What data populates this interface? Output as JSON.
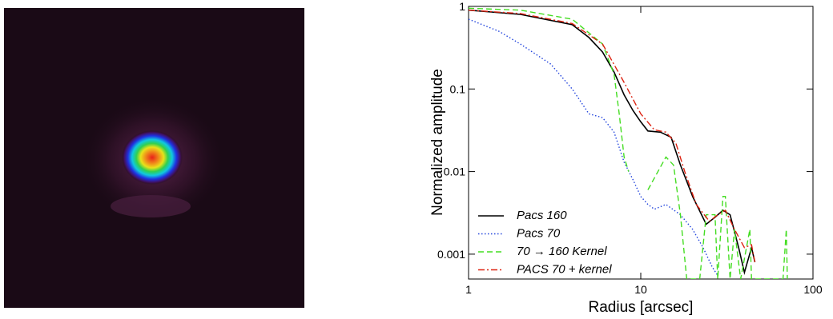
{
  "chart_data": {
    "type": "line",
    "xlabel": "Radius [arcsec]",
    "ylabel": "Normalized amplitude",
    "xlog": true,
    "ylog": true,
    "xlim": [
      1,
      100
    ],
    "ylim": [
      0.0005,
      1
    ],
    "xticks": [
      1,
      10,
      100
    ],
    "yticks": [
      0.001,
      0.01,
      0.1,
      1
    ],
    "legend": "lower left",
    "series": [
      {
        "name": "Pacs 160",
        "color": "#000000",
        "style": "solid",
        "x": [
          1,
          2,
          4,
          5,
          6,
          7,
          8,
          9,
          10,
          11,
          13,
          15,
          17,
          20,
          24,
          27,
          30,
          33,
          37,
          40,
          44,
          46
        ],
        "values": [
          0.9,
          0.8,
          0.6,
          0.42,
          0.28,
          0.16,
          0.085,
          0.055,
          0.04,
          0.031,
          0.03,
          0.026,
          0.012,
          0.005,
          0.0023,
          0.0028,
          0.0034,
          0.003,
          0.0012,
          0.0006,
          0.0012,
          0.0008
        ]
      },
      {
        "name": "Pacs 70",
        "color": "#2244dd",
        "style": "dotted",
        "x": [
          1,
          1.5,
          2,
          3,
          4,
          5,
          6,
          7,
          8,
          9,
          10,
          11,
          12,
          14,
          17,
          20,
          23,
          26,
          28
        ],
        "values": [
          0.7,
          0.5,
          0.35,
          0.2,
          0.1,
          0.05,
          0.045,
          0.03,
          0.013,
          0.008,
          0.005,
          0.004,
          0.0035,
          0.004,
          0.003,
          0.002,
          0.0012,
          0.0007,
          0.00055
        ]
      },
      {
        "name": "70 → 160 Kernel",
        "color": "#44dd22",
        "style": "dashed",
        "x": [
          1,
          2,
          4,
          6,
          7,
          7.5,
          8,
          8.5,
          9,
          11,
          14,
          15.5,
          17,
          18.5,
          22,
          24,
          27,
          28,
          30,
          31,
          33,
          35,
          38,
          43,
          44,
          67,
          70,
          71
        ],
        "values": [
          0.95,
          0.9,
          0.7,
          0.35,
          0.15,
          0.05,
          0.015,
          0.01,
          null,
          0.006,
          0.015,
          0.012,
          0.003,
          0.0005,
          0.0005,
          0.003,
          0.003,
          0.0005,
          0.005,
          0.005,
          0.0005,
          0.002,
          0.0005,
          0.002,
          0.0005,
          0.0005,
          0.002,
          0.0005
        ]
      },
      {
        "name": "PACS 70 + kernel",
        "color": "#dd2211",
        "style": "dashdot",
        "x": [
          1,
          2,
          4,
          6,
          8,
          10,
          12,
          14,
          16,
          18,
          21,
          25,
          28,
          31,
          35,
          40,
          44,
          46
        ],
        "values": [
          0.9,
          0.82,
          0.62,
          0.35,
          0.12,
          0.05,
          0.032,
          0.03,
          0.022,
          0.01,
          0.004,
          0.0025,
          0.003,
          0.0034,
          0.002,
          0.0012,
          0.0013,
          0.0008
        ]
      }
    ]
  }
}
